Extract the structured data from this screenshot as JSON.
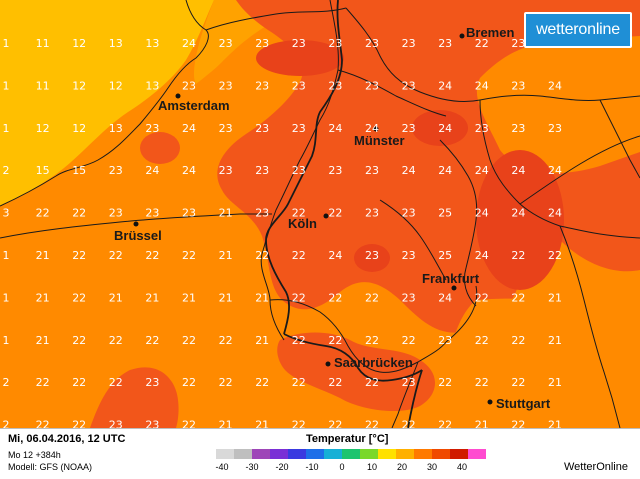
{
  "map": {
    "brand": "wetteronline",
    "cities": [
      {
        "name": "Bremen"
      },
      {
        "name": "Amsterdam"
      },
      {
        "name": "Münster"
      },
      {
        "name": "Köln"
      },
      {
        "name": "Brüssel"
      },
      {
        "name": "Frankfurt"
      },
      {
        "name": "Saarbrücken"
      },
      {
        "name": "Stuttgart"
      }
    ],
    "temperature_grid": [
      [
        "1",
        "11",
        "12",
        "13",
        "13",
        "24",
        "23",
        "23",
        "23",
        "23",
        "23",
        "23",
        "23",
        "22",
        "23",
        "24"
      ],
      [
        "1",
        "11",
        "12",
        "12",
        "13",
        "23",
        "23",
        "23",
        "23",
        "23",
        "23",
        "23",
        "24",
        "24",
        "23",
        "24"
      ],
      [
        "1",
        "12",
        "12",
        "13",
        "23",
        "24",
        "23",
        "23",
        "23",
        "24",
        "24",
        "23",
        "24",
        "23",
        "23",
        "23"
      ],
      [
        "2",
        "15",
        "15",
        "23",
        "24",
        "24",
        "23",
        "23",
        "23",
        "23",
        "23",
        "24",
        "24",
        "24",
        "24",
        "24"
      ],
      [
        "3",
        "22",
        "22",
        "23",
        "23",
        "23",
        "21",
        "23",
        "22",
        "22",
        "23",
        "23",
        "25",
        "24",
        "24",
        "24"
      ],
      [
        "1",
        "21",
        "22",
        "22",
        "22",
        "22",
        "21",
        "22",
        "22",
        "24",
        "23",
        "23",
        "25",
        "24",
        "22",
        "22"
      ],
      [
        "1",
        "21",
        "22",
        "21",
        "21",
        "21",
        "21",
        "21",
        "22",
        "22",
        "22",
        "23",
        "24",
        "22",
        "22",
        "21"
      ],
      [
        "1",
        "21",
        "22",
        "22",
        "22",
        "22",
        "22",
        "21",
        "22",
        "22",
        "22",
        "22",
        "23",
        "22",
        "22",
        "21"
      ],
      [
        "2",
        "22",
        "22",
        "22",
        "23",
        "22",
        "22",
        "22",
        "22",
        "22",
        "22",
        "23",
        "22",
        "22",
        "22",
        "21"
      ],
      [
        "2",
        "22",
        "22",
        "23",
        "23",
        "22",
        "21",
        "21",
        "22",
        "22",
        "22",
        "22",
        "22",
        "21",
        "22",
        "21"
      ]
    ]
  },
  "footer": {
    "date_line": "Mi, 06.04.2016, 12 UTC",
    "run_line": "Mo 12 +384h",
    "model_line": "Modell: GFS (NOAA)",
    "legend_title": "Temperatur [°C]",
    "legend_ticks": [
      "-40",
      "-30",
      "-20",
      "-10",
      "0",
      "10",
      "20",
      "30",
      "40"
    ],
    "legend_colors": [
      "#d9d9d9",
      "#bfbfbf",
      "#9e46b8",
      "#7a2fd6",
      "#3a3ae0",
      "#1e6fe8",
      "#16b0d6",
      "#1cc46f",
      "#7ad82a",
      "#ffe100",
      "#ffb000",
      "#ff7a00",
      "#f04a00",
      "#d01a00",
      "#ff4bd0"
    ],
    "brand": "WetterOnline"
  },
  "colors": {
    "cold_yellow": "#ffbf00",
    "warm_orange": "#ff8a00",
    "hot_red": "#f2561a",
    "accent_blue": "#1f8fd6"
  }
}
